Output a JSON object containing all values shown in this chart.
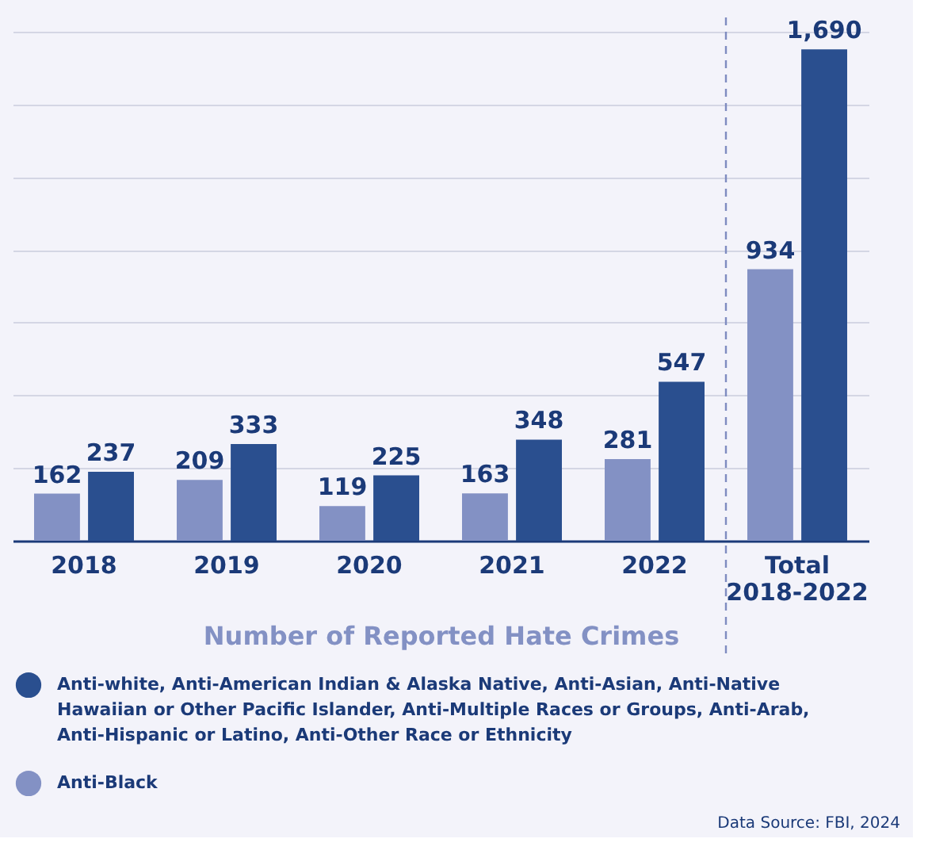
{
  "chart_data": {
    "type": "bar",
    "xlabel": "Number of Reported Hate Crimes",
    "categories": [
      "2018",
      "2019",
      "2020",
      "2021",
      "2022",
      "Total 2018-2022"
    ],
    "series": [
      {
        "name": "Anti-Black",
        "color": "#8391c4",
        "values": [
          162,
          209,
          119,
          163,
          281,
          934
        ],
        "value_labels": [
          "162",
          "209",
          "119",
          "163",
          "281",
          "934"
        ]
      },
      {
        "name": "Anti-white, Anti-American Indian & Alaska Native, Anti-Asian, Anti-Native Hawaiian or Other Pacific Islander, Anti-Multiple Races or Groups, Anti-Arab, Anti-Hispanic or Latino, Anti-Other Race or Ethnicity",
        "color": "#2a4f8f",
        "values": [
          237,
          333,
          225,
          348,
          547,
          1690
        ],
        "value_labels": [
          "237",
          "333",
          "225",
          "348",
          "547",
          "1,690"
        ]
      }
    ],
    "ylim": [
      0,
      1800
    ],
    "yticks": [
      {
        "value": 250,
        "label": null
      },
      {
        "value": 500,
        "label": null
      },
      {
        "value": 750,
        "label": null
      },
      {
        "value": 1000,
        "label": null
      },
      {
        "value": 1250,
        "label": null
      },
      {
        "value": 1500,
        "label": null
      },
      {
        "value": 1750,
        "label": null
      }
    ],
    "tick_labels": "x",
    "grid": "y",
    "legend": "bottom",
    "ref_lines": [
      {
        "axis": "x",
        "value": "Total 2018-2022",
        "line_style": "dashed",
        "color": "#7f8cc0"
      }
    ],
    "annotations": [
      "Data Source: FBI, 2024"
    ]
  }
}
